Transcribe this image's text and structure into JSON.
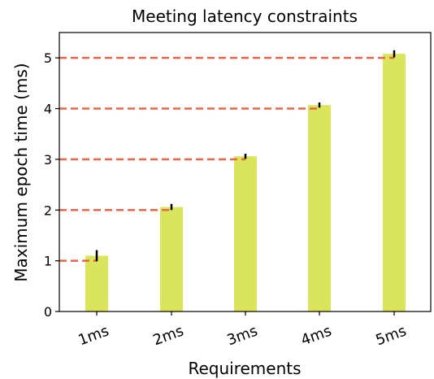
{
  "chart_data": {
    "type": "bar",
    "title": "Meeting latency constraints",
    "xlabel": "Requirements",
    "ylabel": "Maximum epoch time (ms)",
    "categories": [
      "1ms",
      "2ms",
      "3ms",
      "4ms",
      "5ms"
    ],
    "values": [
      1.1,
      2.06,
      3.06,
      4.07,
      5.08
    ],
    "error": [
      0.11,
      0.06,
      0.05,
      0.05,
      0.07
    ],
    "requirement_lines": [
      1,
      2,
      3,
      4,
      5
    ],
    "ylim": [
      0,
      5.5
    ],
    "yticks": [
      "0",
      "1",
      "2",
      "3",
      "4",
      "5"
    ],
    "grid": false,
    "legend": "none",
    "colors": {
      "bar": "#dbe55c",
      "requirement_line": "#e8664a",
      "error_bar": "#000000",
      "axes": "#000000"
    }
  }
}
